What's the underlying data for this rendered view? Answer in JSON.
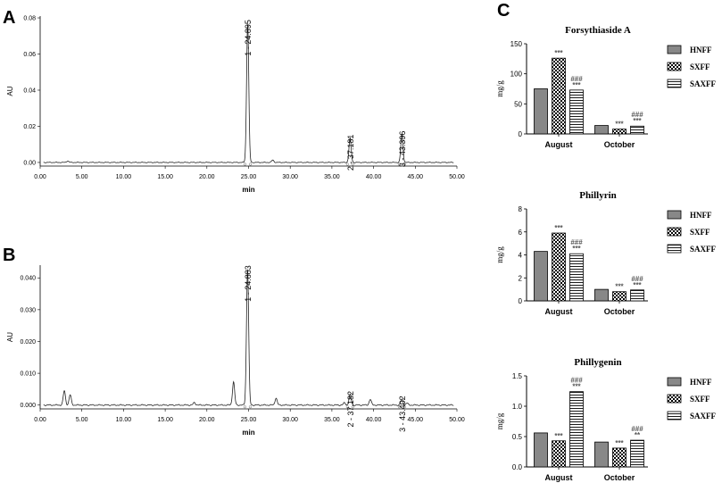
{
  "chart_data": [
    {
      "panel": "A",
      "type": "line",
      "title": "",
      "xlabel": "min",
      "ylabel": "AU",
      "xlim": [
        0,
        50
      ],
      "ylim": [
        -0.002,
        0.081
      ],
      "xticks": [
        "0.00",
        "5.00",
        "10.00",
        "15.00",
        "20.00",
        "25.00",
        "30.00",
        "35.00",
        "40.00",
        "45.00",
        "50.00"
      ],
      "yticks": [
        "0.00",
        "0.02",
        "0.04",
        "0.06",
        "0.08"
      ],
      "peaks": [
        {
          "label": "1 - 24.895",
          "time": 24.895,
          "height": 0.077
        },
        {
          "label": "2 - 37.181",
          "time": 37.181,
          "height": 0.0135
        },
        {
          "label": "3 - 43.396",
          "time": 43.396,
          "height": 0.0155
        }
      ],
      "minor_peaks": [
        {
          "time": 3.3,
          "height": 0.0008
        },
        {
          "time": 27.9,
          "height": 0.0013
        }
      ]
    },
    {
      "panel": "B",
      "type": "line",
      "title": "",
      "xlabel": "min",
      "ylabel": "AU",
      "xlim": [
        0,
        50
      ],
      "ylim": [
        -0.0012,
        0.044
      ],
      "xticks": [
        "0.00",
        "5.00",
        "10.00",
        "15.00",
        "20.00",
        "25.00",
        "30.00",
        "35.00",
        "40.00",
        "45.00",
        "50.00"
      ],
      "yticks": [
        "0.000",
        "0.010",
        "0.020",
        "0.030",
        "0.040"
      ],
      "peaks": [
        {
          "label": "1 - 24.883",
          "time": 24.883,
          "height": 0.0428
        },
        {
          "label": "2 - 37.182",
          "time": 37.182,
          "height": 0.0033
        },
        {
          "label": "3 - 43.402",
          "time": 43.402,
          "height": 0.0018
        }
      ],
      "minor_peaks": [
        {
          "time": 2.9,
          "height": 0.0045
        },
        {
          "time": 3.6,
          "height": 0.0032
        },
        {
          "time": 18.5,
          "height": 0.0008
        },
        {
          "time": 23.2,
          "height": 0.0073
        },
        {
          "time": 28.3,
          "height": 0.0022
        },
        {
          "time": 36.5,
          "height": 0.0007
        },
        {
          "time": 39.6,
          "height": 0.0018
        },
        {
          "time": 44.0,
          "height": 0.0006
        }
      ]
    },
    {
      "panel": "C",
      "type": "bar",
      "title": "Forsythiaside A",
      "ylabel": "mg/g",
      "categories": [
        "August",
        "October"
      ],
      "ylim": [
        0,
        150
      ],
      "yticks": [
        "0",
        "50",
        "100",
        "150"
      ],
      "series": [
        {
          "name": "HNFF",
          "values": [
            75,
            14
          ],
          "annotations": [
            "",
            ""
          ]
        },
        {
          "name": "SXFF",
          "values": [
            126,
            8
          ],
          "annotations": [
            "***",
            "***"
          ]
        },
        {
          "name": "SAXFF",
          "values": [
            73,
            13
          ],
          "annotations": [
            "###\n***",
            "###\n***"
          ]
        }
      ]
    },
    {
      "panel": "C",
      "type": "bar",
      "title": "Phillyrin",
      "ylabel": "mg/g",
      "categories": [
        "August",
        "October"
      ],
      "ylim": [
        0,
        8
      ],
      "yticks": [
        "0",
        "2",
        "4",
        "6",
        "8"
      ],
      "series": [
        {
          "name": "HNFF",
          "values": [
            4.3,
            1.0
          ],
          "annotations": [
            "",
            ""
          ]
        },
        {
          "name": "SXFF",
          "values": [
            5.9,
            0.8
          ],
          "annotations": [
            "***",
            "***"
          ]
        },
        {
          "name": "SAXFF",
          "values": [
            4.1,
            0.95
          ],
          "annotations": [
            "###\n***",
            "###\n***"
          ]
        }
      ]
    },
    {
      "panel": "C",
      "type": "bar",
      "title": "Phillygenin",
      "ylabel": "mg/g",
      "categories": [
        "August",
        "October"
      ],
      "ylim": [
        0,
        1.5
      ],
      "yticks": [
        "0.0",
        "0.5",
        "1.0",
        "1.5"
      ],
      "series": [
        {
          "name": "HNFF",
          "values": [
            0.56,
            0.41
          ],
          "annotations": [
            "",
            ""
          ]
        },
        {
          "name": "SXFF",
          "values": [
            0.43,
            0.31
          ],
          "annotations": [
            "***",
            "***"
          ]
        },
        {
          "name": "SAXFF",
          "values": [
            1.24,
            0.44
          ],
          "annotations": [
            "###\n***",
            "###\n**"
          ]
        }
      ]
    }
  ],
  "panel_letters": [
    "A",
    "B",
    "C"
  ]
}
